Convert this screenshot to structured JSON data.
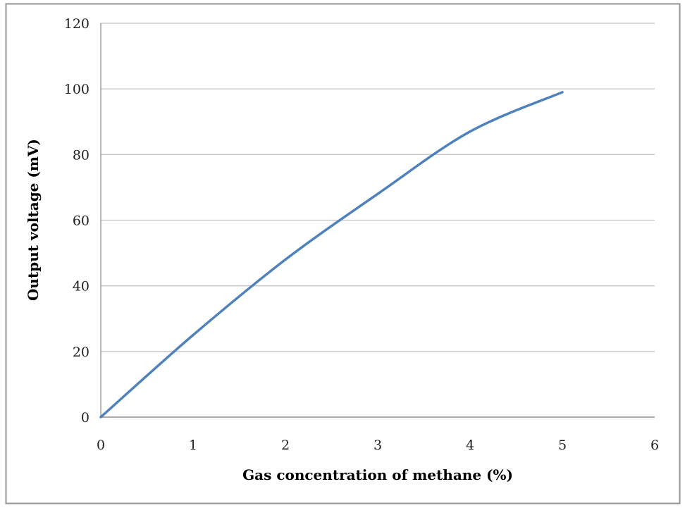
{
  "colors": {
    "line": "#4F81BD",
    "gridline": "#C4C4C4",
    "axis_line": "#8E8E8E",
    "frame_border": "#949494",
    "background": "#FFFFFF",
    "text": "#1A1A1A"
  },
  "chart_data": {
    "type": "line",
    "title": "",
    "xlabel": "Gas concentration of methane (%)",
    "ylabel": "Output voltage (mV)",
    "x": [
      0,
      1,
      2,
      3,
      4,
      5
    ],
    "values": [
      0,
      25,
      48,
      68,
      87,
      99
    ],
    "xlim": [
      0,
      6
    ],
    "ylim": [
      0,
      120
    ],
    "xticks": [
      0,
      1,
      2,
      3,
      4,
      5,
      6
    ],
    "yticks": [
      0,
      20,
      40,
      60,
      80,
      100,
      120
    ],
    "grid": "horizontal",
    "legend": "none",
    "smooth": true
  }
}
